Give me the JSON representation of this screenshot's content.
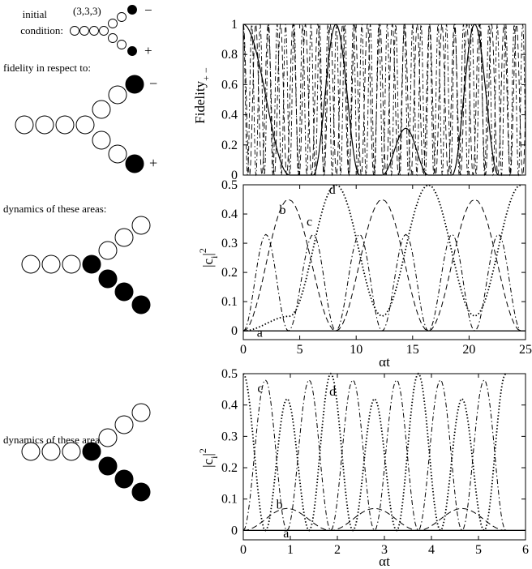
{
  "left": {
    "initial_label_1": "initial",
    "initial_label_2": "condition:",
    "triple": "(3,3,3)",
    "minus": "−",
    "plus": "+",
    "fidelity_label": "fidelity in respect to:",
    "dynamics_label_1": "dynamics of these areas:",
    "dynamics_label_2": "dynamics of these areas:"
  },
  "chart_data": [
    {
      "type": "line",
      "ylabel": "Fidelity",
      "ylabel_subscript": "+ −",
      "xlim": [
        0,
        25
      ],
      "ylim": [
        0,
        1
      ],
      "yticks": [
        "0",
        "0.2",
        "0.4",
        "0.6",
        "0.8",
        "1"
      ],
      "series": [
        {
          "style": "solid",
          "period": 8.2,
          "x": [
            0,
            4.1,
            6.2,
            8.2,
            10.3,
            12.3,
            14.4,
            16.4,
            18.5,
            20.5,
            22.6,
            24.6
          ],
          "y": [
            1,
            0,
            0,
            1,
            0,
            0,
            0.31,
            0,
            0,
            1,
            0,
            0
          ]
        },
        {
          "style": "dashed",
          "period": 1.1
        },
        {
          "style": "dash-dot",
          "period": 0.75
        }
      ],
      "grid": false
    },
    {
      "type": "line",
      "ylabel": "|c",
      "ylabel_sub": "i",
      "ylabel_tail": "|",
      "ylabel_sup": "2",
      "xlabel": "αt",
      "xlim": [
        0,
        25
      ],
      "ylim": [
        -0.03,
        0.5
      ],
      "xticks": [
        "0",
        "5",
        "10",
        "15",
        "20",
        "25"
      ],
      "yticks": [
        "0",
        "0.1",
        "0.2",
        "0.3",
        "0.4",
        "0.5"
      ],
      "series": [
        {
          "name": "a",
          "style": "solid",
          "x": [
            0,
            25
          ],
          "y": [
            0,
            0
          ]
        },
        {
          "name": "b",
          "style": "dashed",
          "x": [
            0,
            4,
            8.2,
            12.3,
            16.4,
            20.5,
            24.6
          ],
          "y": [
            0,
            0.45,
            0,
            0.45,
            0,
            0.45,
            0
          ]
        },
        {
          "name": "c",
          "style": "dash-dot",
          "x": [
            0,
            2,
            4,
            6.2,
            8.2,
            10.3,
            12.3,
            14.4,
            16.4,
            18.5,
            20.5,
            22.6,
            24.6
          ],
          "y": [
            0,
            0.33,
            0,
            0.33,
            0,
            0.33,
            0,
            0.33,
            0,
            0.33,
            0,
            0.33,
            0
          ]
        },
        {
          "name": "d",
          "style": "dotted",
          "x": [
            0,
            4.1,
            8.2,
            12.3,
            16.4,
            20.5,
            24.6
          ],
          "y": [
            0,
            0.05,
            0.5,
            0.05,
            0.5,
            0.05,
            0.5
          ]
        }
      ],
      "annotations": [
        "a",
        "b",
        "c",
        "d"
      ]
    },
    {
      "type": "line",
      "ylabel": "|c",
      "ylabel_sub": "i",
      "ylabel_tail": "|",
      "ylabel_sup": "2",
      "xlabel": "αt",
      "xlim": [
        0,
        6
      ],
      "ylim": [
        -0.03,
        0.5
      ],
      "xticks": [
        "0",
        "1",
        "2",
        "3",
        "4",
        "5",
        "6"
      ],
      "yticks": [
        "0",
        "0.1",
        "0.2",
        "0.3",
        "0.4",
        "0.5"
      ],
      "series": [
        {
          "name": "a",
          "style": "solid",
          "x": [
            0,
            6
          ],
          "y": [
            0,
            0
          ]
        },
        {
          "name": "b",
          "style": "dashed",
          "x": [
            0,
            0.93,
            1.86,
            2.79,
            3.72,
            4.65,
            5.58
          ],
          "y": [
            0,
            0.07,
            0,
            0.07,
            0,
            0.07,
            0
          ]
        },
        {
          "name": "c",
          "style": "dash-dot",
          "x": [
            0,
            0.47,
            0.93,
            1.4,
            1.86,
            2.33,
            2.79,
            3.26,
            3.72,
            4.19,
            4.65,
            5.12,
            5.58
          ],
          "y": [
            0,
            0.48,
            0,
            0.48,
            0,
            0.48,
            0,
            0.48,
            0,
            0.48,
            0,
            0.48,
            0
          ]
        },
        {
          "name": "d",
          "style": "dotted",
          "x": [
            0,
            0.47,
            0.93,
            1.4,
            1.86,
            2.33,
            2.79,
            3.26,
            3.72,
            4.19,
            4.65,
            5.12,
            5.58
          ],
          "y": [
            0.5,
            0,
            0.42,
            0,
            0.5,
            0,
            0.42,
            0,
            0.5,
            0,
            0.42,
            0,
            0.5
          ]
        }
      ],
      "annotations": [
        "a",
        "b",
        "c",
        "d"
      ]
    }
  ]
}
